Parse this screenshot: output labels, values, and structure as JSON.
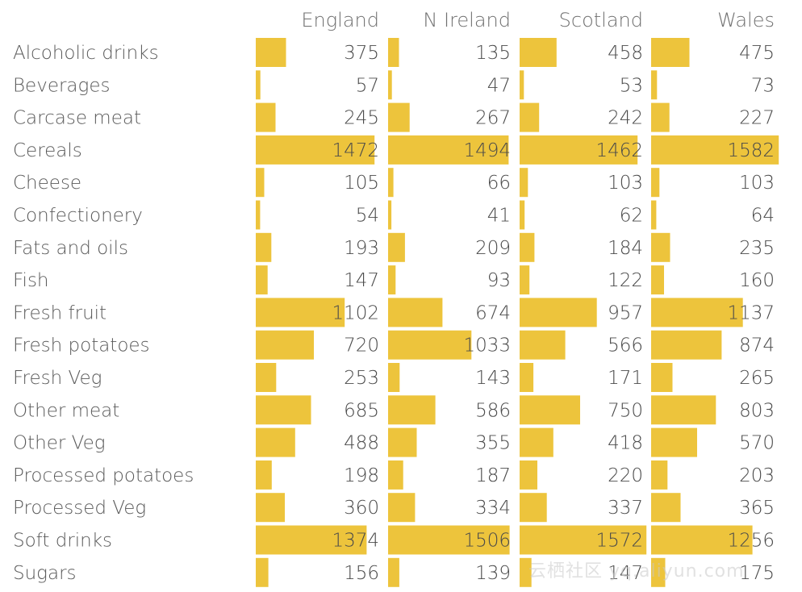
{
  "chart_data": {
    "type": "bar",
    "title": "",
    "columns": [
      "England",
      "N Ireland",
      "Scotland",
      "Wales"
    ],
    "categories": [
      "Alcoholic drinks",
      "Beverages",
      "Carcase meat",
      "Cereals",
      "Cheese",
      "Confectionery",
      "Fats and oils",
      "Fish",
      "Fresh fruit",
      "Fresh potatoes",
      "Fresh Veg",
      "Other meat",
      "Other Veg",
      "Processed potatoes",
      "Processed Veg",
      "Soft drinks",
      "Sugars"
    ],
    "series": [
      {
        "name": "England",
        "values": [
          375,
          57,
          245,
          1472,
          105,
          54,
          193,
          147,
          1102,
          720,
          253,
          685,
          488,
          198,
          360,
          1374,
          156
        ]
      },
      {
        "name": "N Ireland",
        "values": [
          135,
          47,
          267,
          1494,
          66,
          41,
          209,
          93,
          674,
          1033,
          143,
          586,
          355,
          187,
          334,
          1506,
          139
        ]
      },
      {
        "name": "Scotland",
        "values": [
          458,
          53,
          242,
          1462,
          103,
          62,
          184,
          122,
          957,
          566,
          171,
          750,
          418,
          220,
          337,
          1572,
          147
        ]
      },
      {
        "name": "Wales",
        "values": [
          475,
          73,
          227,
          1582,
          103,
          64,
          235,
          160,
          1137,
          874,
          265,
          803,
          570,
          203,
          365,
          1256,
          175
        ]
      }
    ],
    "xlim": [
      0,
      1600
    ],
    "bar_color": "#edc43c"
  },
  "watermark": "云栖社区 yq.aliyun.com"
}
